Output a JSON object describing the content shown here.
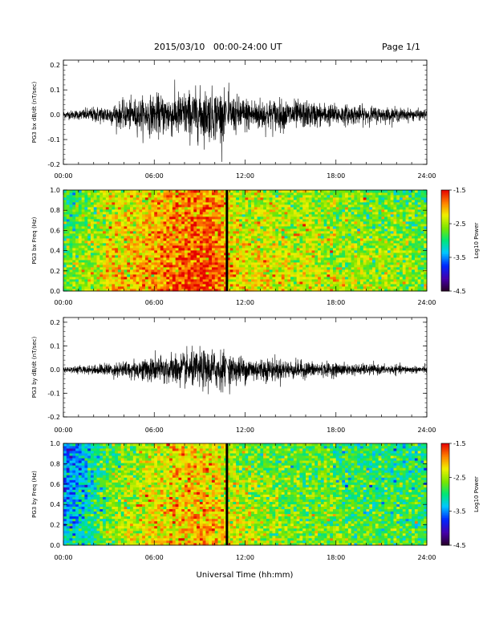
{
  "header": {
    "title": "2015/03/10   00:00-24:00 UT",
    "page": "Page 1/1"
  },
  "xlabel": "Universal Time (hh:mm)",
  "time_ticks": [
    "00:00",
    "06:00",
    "12:00",
    "18:00",
    "24:00"
  ],
  "colorbar": {
    "label": "Log10 Power",
    "ticks": [
      "-1.5",
      "-2.5",
      "-3.5",
      "-4.5"
    ]
  },
  "chart_data": [
    {
      "type": "line",
      "title": "",
      "xlabel": "",
      "ylabel": "PG3 bx dB/dt (nT/sec)",
      "x_range_hours": [
        0,
        24
      ],
      "ylim": [
        -0.2,
        0.22
      ],
      "yticks": [
        "0.2",
        "0.1",
        "0.0",
        "-0.1",
        "-0.2"
      ],
      "envelope": {
        "x_hours": [
          0,
          1,
          2,
          3,
          4,
          5,
          6,
          7,
          8,
          9,
          10,
          10.8,
          11,
          12,
          13,
          14,
          15,
          16,
          17,
          18,
          19,
          20,
          21,
          22,
          23,
          24
        ],
        "amplitude": [
          0.02,
          0.025,
          0.04,
          0.05,
          0.07,
          0.085,
          0.1,
          0.11,
          0.12,
          0.13,
          0.13,
          0.12,
          0.1,
          0.09,
          0.085,
          0.08,
          0.075,
          0.07,
          0.06,
          0.055,
          0.05,
          0.045,
          0.04,
          0.035,
          0.03,
          0.025
        ]
      },
      "data_gap_hours": 10.8
    },
    {
      "type": "heatmap",
      "title": "",
      "ylabel": "PG3 bx Freq (Hz)",
      "x_range_hours": [
        0,
        24
      ],
      "ylim": [
        0.0,
        1.0
      ],
      "yticks": [
        "1.0",
        "0.8",
        "0.6",
        "0.4",
        "0.2",
        "0.0"
      ],
      "value_label": "Log10 Power",
      "value_range": [
        -4.5,
        -1.5
      ],
      "power_profile_hours": [
        0,
        1,
        2,
        3,
        4,
        5,
        6,
        7,
        8,
        9,
        10,
        11,
        12,
        13,
        14,
        15,
        16,
        17,
        18,
        19,
        20,
        21,
        22,
        23,
        24
      ],
      "power_profile_values": [
        -2.7,
        -2.6,
        -2.4,
        -2.2,
        -2.1,
        -2.0,
        -1.9,
        -1.8,
        -1.7,
        -1.65,
        -1.7,
        -2.1,
        -2.2,
        -2.2,
        -2.25,
        -2.3,
        -2.3,
        -2.35,
        -2.4,
        -2.45,
        -2.45,
        -2.5,
        -2.5,
        -2.55,
        -2.6
      ],
      "data_gap_hours": 10.8
    },
    {
      "type": "line",
      "title": "",
      "xlabel": "",
      "ylabel": "PG3 by dB/dt (nT/sec)",
      "x_range_hours": [
        0,
        24
      ],
      "ylim": [
        -0.2,
        0.22
      ],
      "yticks": [
        "0.2",
        "0.1",
        "0.0",
        "-0.1",
        "-0.2"
      ],
      "envelope": {
        "x_hours": [
          0,
          1,
          2,
          3,
          4,
          5,
          6,
          7,
          8,
          9,
          10,
          10.8,
          11,
          12,
          13,
          14,
          15,
          16,
          17,
          18,
          19,
          20,
          21,
          22,
          23,
          24
        ],
        "amplitude": [
          0.015,
          0.02,
          0.025,
          0.035,
          0.045,
          0.055,
          0.07,
          0.08,
          0.09,
          0.1,
          0.11,
          0.1,
          0.08,
          0.07,
          0.065,
          0.06,
          0.05,
          0.045,
          0.04,
          0.035,
          0.03,
          0.03,
          0.025,
          0.025,
          0.02,
          0.02
        ]
      },
      "data_gap_hours": 10.8
    },
    {
      "type": "heatmap",
      "title": "",
      "ylabel": "PG3 by Freq (Hz)",
      "x_range_hours": [
        0,
        24
      ],
      "ylim": [
        0.0,
        1.0
      ],
      "yticks": [
        "1.0",
        "0.8",
        "0.6",
        "0.4",
        "0.2",
        "0.0"
      ],
      "value_label": "Log10 Power",
      "value_range": [
        -4.5,
        -1.5
      ],
      "power_profile_hours": [
        0,
        1,
        2,
        3,
        4,
        5,
        6,
        7,
        8,
        9,
        10,
        11,
        12,
        13,
        14,
        15,
        16,
        17,
        18,
        19,
        20,
        21,
        22,
        23,
        24
      ],
      "power_profile_values": [
        -3.4,
        -3.2,
        -2.9,
        -2.6,
        -2.4,
        -2.3,
        -2.2,
        -2.1,
        -2.0,
        -2.0,
        -2.0,
        -2.3,
        -2.4,
        -2.45,
        -2.5,
        -2.55,
        -2.6,
        -2.6,
        -2.65,
        -2.7,
        -2.7,
        -2.75,
        -2.75,
        -2.8,
        -2.8
      ],
      "data_gap_hours": 10.8
    }
  ]
}
